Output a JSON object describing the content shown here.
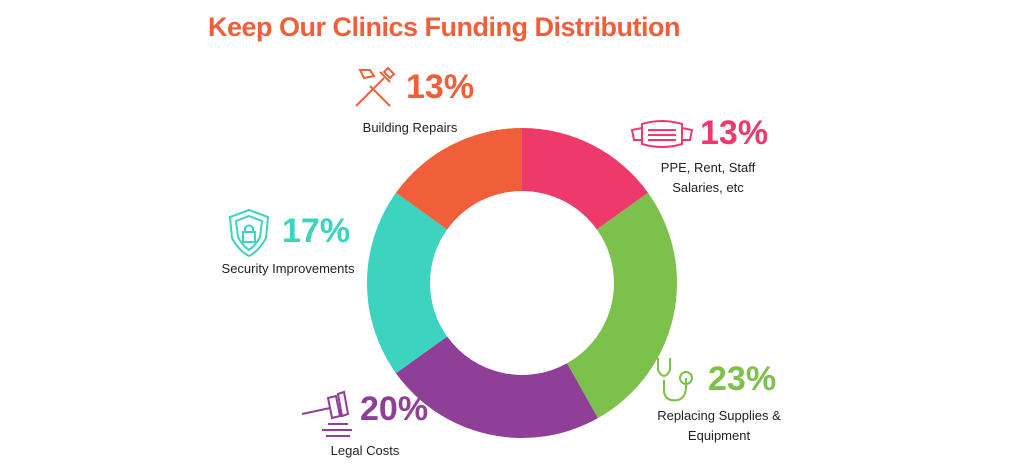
{
  "chart_data": {
    "type": "donut",
    "title": "Keep Our Clinics Funding Distribution",
    "categories": [
      "PPE, Rent, Staff Salaries, etc",
      "Replacing Supplies & Equipment",
      "Legal Costs",
      "Security Improvements",
      "Building Repairs"
    ],
    "values": [
      13,
      23,
      20,
      17,
      13
    ],
    "value_labels": [
      "13%",
      "23%",
      "20%",
      "17%",
      "13%"
    ],
    "colors": [
      "#ee3a6b",
      "#7cc14c",
      "#8f3f98",
      "#3cd3bf",
      "#f05f39"
    ]
  }
}
